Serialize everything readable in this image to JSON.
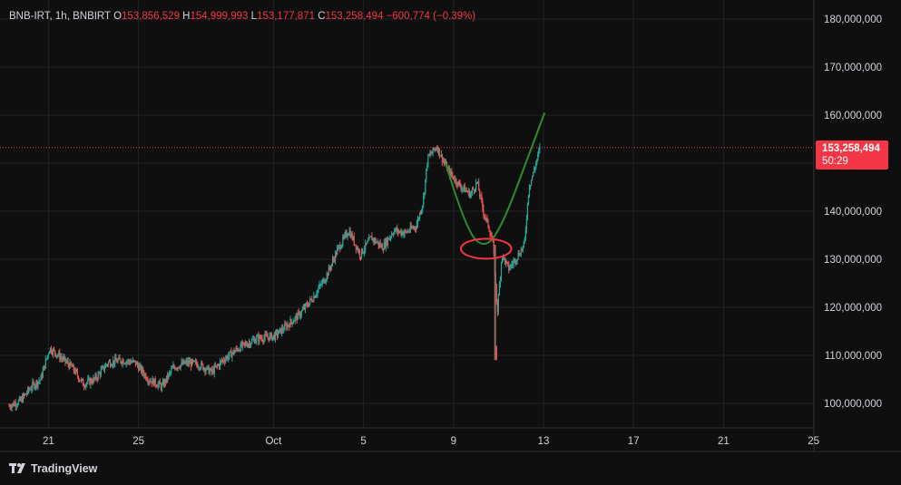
{
  "header": {
    "symbol": "BNB-IRT, 1h, BNBIRT",
    "open_label": "O",
    "open": "153,856,529",
    "high_label": "H",
    "high": "154,999,993",
    "low_label": "L",
    "low": "153,177,871",
    "close_label": "C",
    "close": "153,258,494",
    "change": "−600,774 (−0.39%)"
  },
  "price_tag": {
    "price": "153,258,494",
    "countdown": "50:29"
  },
  "brand": "TradingView",
  "colors": {
    "up": "#26a69a",
    "down": "#ef5350",
    "accent": "#f23645",
    "curve": "#2e8b2e"
  },
  "chart_data": {
    "type": "candlestick",
    "x_tick_labels": [
      "21",
      "25",
      "Oct",
      "5",
      "9",
      "13",
      "17",
      "21",
      "25"
    ],
    "y_tick_labels": [
      "100,000,000",
      "110,000,000",
      "120,000,000",
      "130,000,000",
      "140,000,000",
      "150,000,000",
      "160,000,000",
      "170,000,000",
      "180,000,000"
    ],
    "y_ticks": [
      100000000,
      110000000,
      120000000,
      130000000,
      140000000,
      150000000,
      160000000,
      170000000,
      180000000
    ],
    "ylim": [
      95000000,
      185000000
    ],
    "last_price": 153258494,
    "grid": true,
    "price_path_days": [
      [
        0,
        99.5
      ],
      [
        0.5,
        100.5
      ],
      [
        1,
        103.5
      ],
      [
        1.4,
        105
      ],
      [
        1.8,
        111.5
      ],
      [
        2.2,
        110
      ],
      [
        2.8,
        107.5
      ],
      [
        3.3,
        104
      ],
      [
        3.8,
        105
      ],
      [
        4.4,
        108.5
      ],
      [
        5.0,
        109
      ],
      [
        5.6,
        108.5
      ],
      [
        6.2,
        105
      ],
      [
        6.8,
        103.5
      ],
      [
        7.3,
        107.5
      ],
      [
        7.9,
        108.5
      ],
      [
        8.5,
        108
      ],
      [
        9.0,
        106.5
      ],
      [
        9.5,
        109
      ],
      [
        10.2,
        111.5
      ],
      [
        11.0,
        113.5
      ],
      [
        11.8,
        114
      ],
      [
        12.3,
        116
      ],
      [
        12.9,
        118.5
      ],
      [
        13.5,
        122
      ],
      [
        14.1,
        126.5
      ],
      [
        14.6,
        132
      ],
      [
        15.1,
        136
      ],
      [
        15.6,
        131
      ],
      [
        16.1,
        134.5
      ],
      [
        16.6,
        132.5
      ],
      [
        17.1,
        136
      ],
      [
        17.6,
        135.5
      ],
      [
        18.1,
        137
      ],
      [
        18.4,
        142
      ],
      [
        18.6,
        151
      ],
      [
        19.0,
        153.5
      ],
      [
        19.5,
        148.5
      ],
      [
        20.0,
        145.5
      ],
      [
        20.5,
        143.5
      ],
      [
        20.8,
        146
      ],
      [
        21.1,
        139.5
      ],
      [
        21.3,
        137
      ],
      [
        21.5,
        133.5
      ],
      [
        21.7,
        119
      ],
      [
        21.9,
        131
      ],
      [
        22.2,
        128
      ],
      [
        22.5,
        130
      ],
      [
        22.9,
        133
      ],
      [
        23.1,
        145
      ],
      [
        23.3,
        148
      ],
      [
        23.6,
        153.3
      ]
    ],
    "wicks": [
      {
        "day": 21.6,
        "low": 109,
        "high": 133
      }
    ],
    "annotations": {
      "curve_points_days": [
        [
          19.4,
          150
        ],
        [
          20.3,
          136
        ],
        [
          21.2,
          132
        ],
        [
          22.0,
          138
        ],
        [
          23.0,
          150.5
        ],
        [
          23.8,
          160.5
        ]
      ],
      "ellipse_center": [
        21.2,
        132.2
      ],
      "ellipse_radius_days": 0.7,
      "ellipse_radius_millions": 2.0
    }
  }
}
